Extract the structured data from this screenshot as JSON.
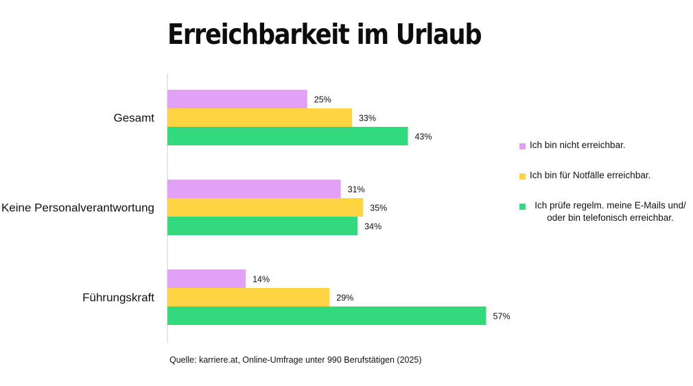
{
  "title": "Erreichbarkeit im Urlaub",
  "source": "Quelle: karriere.at, Online-Umfrage unter 990 Berufstätigen (2025)",
  "colors": {
    "series1": "#e2a1f7",
    "series2": "#fed443",
    "series3": "#33d97d",
    "axis": "#cccccc"
  },
  "legend": {
    "item1": "Ich bin nicht erreichbar.",
    "item2": "Ich bin für Notfälle erreichbar.",
    "item3": "Ich prüfe regelm. meine E-Mails und/ oder bin telefonisch erreichbar."
  },
  "chart_data": {
    "type": "bar",
    "orientation": "horizontal",
    "categories": [
      "Gesamt",
      "Keine Personalverantwortung",
      "Führungskraft"
    ],
    "series": [
      {
        "name": "Ich bin nicht erreichbar.",
        "values": [
          25,
          31,
          14
        ]
      },
      {
        "name": "Ich bin für Notfälle erreichbar.",
        "values": [
          33,
          35,
          29
        ]
      },
      {
        "name": "Ich prüfe regelm. meine E-Mails und/ oder bin telefonisch erreichbar.",
        "values": [
          43,
          34,
          57
        ]
      }
    ],
    "value_suffix": "%",
    "xlim": [
      0,
      60
    ],
    "grid": false,
    "legend_position": "right",
    "title": "Erreichbarkeit im Urlaub"
  }
}
